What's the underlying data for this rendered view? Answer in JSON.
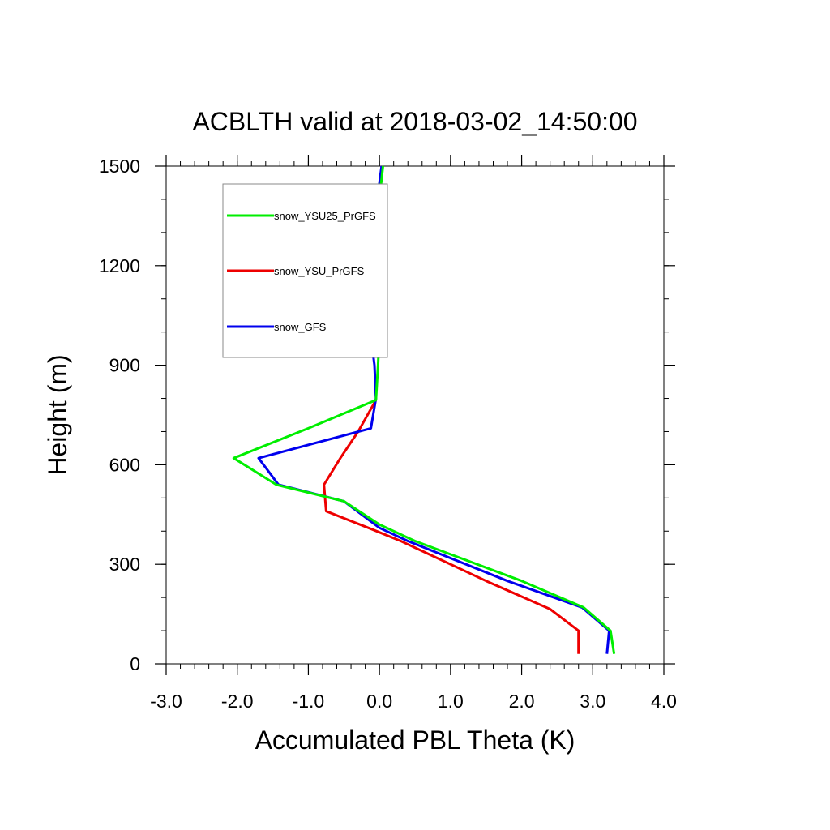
{
  "chart_data": {
    "type": "line",
    "title": "ACBLTH valid at 2018-03-02_14:50:00",
    "xlabel": "Accumulated PBL Theta (K)",
    "ylabel": "Height (m)",
    "xlim": [
      -3.0,
      4.0
    ],
    "ylim": [
      0,
      1500
    ],
    "xticks": [
      -3.0,
      -2.0,
      -1.0,
      0.0,
      1.0,
      2.0,
      3.0,
      4.0
    ],
    "xtick_labels": [
      "-3.0",
      "-2.0",
      "-1.0",
      "0.0",
      "1.0",
      "2.0",
      "3.0",
      "4.0"
    ],
    "yticks": [
      0,
      300,
      600,
      900,
      1200,
      1500
    ],
    "ytick_labels": [
      "0",
      "300",
      "600",
      "900",
      "1200",
      "1500"
    ],
    "grid": false,
    "legend_position": "top-left",
    "series": [
      {
        "name": "snow_YSU25_PrGFS",
        "color": "#00ee00",
        "x": [
          3.3,
          3.25,
          2.87,
          2.0,
          0.5,
          0.0,
          -0.5,
          -1.45,
          -2.05,
          -1.0,
          -0.05,
          -0.02,
          0.0,
          0.0,
          0.0,
          0.0,
          0.0,
          0.05
        ],
        "y": [
          30,
          100,
          170,
          250,
          370,
          420,
          490,
          540,
          620,
          710,
          795,
          900,
          1000,
          1100,
          1200,
          1300,
          1400,
          1500
        ]
      },
      {
        "name": "snow_YSU_PrGFS",
        "color": "#ee0000",
        "x": [
          2.8,
          2.8,
          2.4,
          1.5,
          0.3,
          -0.1,
          -0.75,
          -0.78,
          -0.55,
          -0.3,
          -0.05
        ]
      },
      {
        "name": "snow_GFS",
        "color": "#0000ee",
        "x": [
          3.2,
          3.23,
          2.85,
          1.8,
          0.4,
          0.0,
          -0.5,
          -1.42,
          -1.7,
          -0.12,
          -0.05,
          -0.07,
          -0.12,
          -0.08,
          -0.05,
          -0.03,
          -0.02,
          0.0,
          0.03
        ],
        "y": [
          30,
          100,
          170,
          250,
          370,
          410,
          490,
          540,
          620,
          710,
          800,
          900,
          985,
          1100,
          1200,
          1300,
          1400,
          1450,
          1500
        ]
      }
    ],
    "red_series_y": [
      30,
      100,
      165,
      250,
      370,
      405,
      460,
      540,
      620,
      700,
      795
    ]
  }
}
